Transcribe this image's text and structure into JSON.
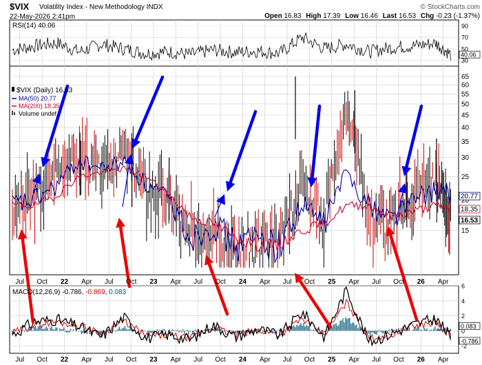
{
  "header": {
    "symbol": "$VIX",
    "name": "Volatility Index - New Methodology",
    "exchange": "INDX",
    "date": "22-May-2026 2:41pm",
    "watermark": "© StockCharts.com",
    "open_label": "Open",
    "open": "16.83",
    "high_label": "High",
    "high": "17.39",
    "low_label": "Low",
    "low": "16.46",
    "last_label": "Last",
    "last": "16.53",
    "chg_label": "Chg",
    "chg": "-0.23 (-1.37%)"
  },
  "colors": {
    "price": "#000000",
    "price_down": "#cc0000",
    "ma50": "#000099",
    "ma200": "#cc0033",
    "rsi": "#000000",
    "macd": "#000000",
    "signal": "#cc0000",
    "histogram": "#005577",
    "blue_arrow": "#0000ee",
    "red_arrow": "#ee0000",
    "grid": "#cccccc"
  },
  "chart_data": [
    {
      "type": "line",
      "panel": "rsi",
      "legend": "RSI(14) 40.06",
      "ylim": [
        20,
        100
      ],
      "yticks": [
        30,
        50,
        70,
        90
      ],
      "reference_lines": [
        30,
        70
      ],
      "last_value_label": "40.06",
      "x": [
        "2021-06",
        "2021-09",
        "2021-12",
        "2022-03",
        "2022-06",
        "2022-09",
        "2022-12",
        "2023-03",
        "2023-06",
        "2023-09",
        "2023-12",
        "2024-03",
        "2024-06",
        "2024-09",
        "2024-12",
        "2025-03",
        "2025-06",
        "2025-09",
        "2025-12",
        "2026-03",
        "2026-05"
      ],
      "series": [
        {
          "values": [
            48,
            55,
            60,
            45,
            58,
            50,
            42,
            45,
            40,
            48,
            44,
            46,
            42,
            70,
            50,
            58,
            45,
            52,
            55,
            60,
            40
          ]
        }
      ]
    },
    {
      "type": "bar",
      "panel": "price",
      "legend": {
        "price": "$VIX (Daily) 16.53",
        "ma50": "MA(50) 20.77",
        "ma200": "MA(200) 18.35",
        "volume": "Volume undef"
      },
      "ylim": [
        10,
        65
      ],
      "yticks": [
        15,
        20,
        25,
        30,
        35,
        40,
        45,
        50,
        55,
        60,
        65
      ],
      "value_labels": [
        "20.77",
        "18.35",
        "16.53"
      ],
      "x": [
        "2021-06",
        "2021-09",
        "2021-12",
        "2022-03",
        "2022-06",
        "2022-09",
        "2022-12",
        "2023-03",
        "2023-06",
        "2023-09",
        "2023-12",
        "2024-03",
        "2024-06",
        "2024-09",
        "2024-12",
        "2025-03",
        "2025-06",
        "2025-09",
        "2025-12",
        "2026-03",
        "2026-05"
      ],
      "series": [
        {
          "name": "$VIX",
          "values": [
            17,
            21,
            27,
            30,
            26,
            32,
            22,
            20,
            13,
            17,
            12,
            13,
            12,
            24,
            16,
            45,
            17,
            16,
            21,
            25,
            16.53
          ]
        },
        {
          "name": "MA(50)",
          "values": [
            19,
            20,
            23,
            29,
            27,
            29,
            23,
            20,
            14,
            16,
            13,
            14,
            13,
            19,
            16,
            26,
            19,
            17,
            20,
            22,
            20.77
          ]
        },
        {
          "name": "MA(200)",
          "values": [
            19,
            19,
            21,
            25,
            26,
            27,
            25,
            21,
            17,
            16,
            14,
            13,
            13,
            15,
            16,
            19,
            19,
            17,
            18,
            19,
            18.35
          ]
        }
      ],
      "annotations": {
        "blue_arrows_at_peaks": 6,
        "red_arrows_at_lows": 6
      }
    },
    {
      "type": "line",
      "panel": "macd",
      "legend_prefix": "MACD(12,26,9)",
      "legend_values": [
        "-0.786",
        "-0.869",
        "0.083"
      ],
      "ylim": [
        -3,
        6
      ],
      "yticks": [
        -2,
        0,
        2,
        4,
        6
      ],
      "value_labels": [
        "0.083",
        "-0.786"
      ],
      "x": [
        "2021-06",
        "2021-09",
        "2021-12",
        "2022-03",
        "2022-06",
        "2022-09",
        "2022-12",
        "2023-03",
        "2023-06",
        "2023-09",
        "2023-12",
        "2024-03",
        "2024-06",
        "2024-09",
        "2024-12",
        "2025-03",
        "2025-06",
        "2025-09",
        "2025-12",
        "2026-03",
        "2026-05"
      ],
      "series": [
        {
          "name": "MACD",
          "values": [
            -0.5,
            1.2,
            1.5,
            0.5,
            -0.8,
            1.8,
            -1.0,
            -0.5,
            -1.2,
            0.8,
            -0.8,
            0.2,
            -0.6,
            2.5,
            -0.8,
            5.5,
            -1.5,
            -0.4,
            0.8,
            1.6,
            -0.786
          ]
        },
        {
          "name": "Signal",
          "values": [
            -0.3,
            0.8,
            1.2,
            0.7,
            -0.4,
            1.3,
            -0.7,
            -0.6,
            -1.0,
            0.5,
            -0.6,
            0.1,
            -0.5,
            1.6,
            -0.5,
            3.8,
            -1.0,
            -0.5,
            0.6,
            1.2,
            -0.869
          ]
        },
        {
          "name": "Histogram",
          "values": [
            -0.2,
            0.4,
            0.3,
            -0.2,
            -0.4,
            0.5,
            -0.3,
            0.1,
            -0.2,
            0.3,
            -0.2,
            0.1,
            -0.1,
            0.9,
            -0.3,
            1.7,
            -0.5,
            0.1,
            0.2,
            0.4,
            0.083
          ]
        }
      ]
    }
  ],
  "x_axis": {
    "labels": [
      "Jul",
      "Oct",
      "22",
      "Apr",
      "Jul",
      "Oct",
      "23",
      "Apr",
      "Jul",
      "Oct",
      "24",
      "Apr",
      "Jul",
      "Oct",
      "25",
      "Apr",
      "Jul",
      "Oct",
      "26",
      "Apr"
    ],
    "bold": [
      "22",
      "23",
      "24",
      "25",
      "26"
    ]
  }
}
